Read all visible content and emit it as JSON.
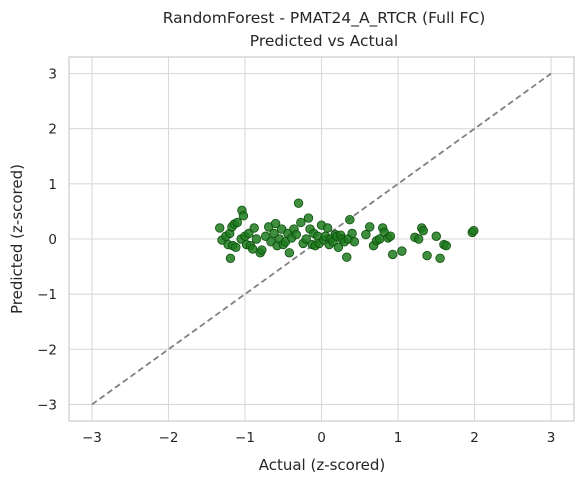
{
  "chart_data": {
    "type": "scatter",
    "title_line1": "RandomForest - PMAT24_A_RTCR (Full FC)",
    "title_line2": "Predicted vs Actual",
    "xlabel": "Actual (z-scored)",
    "ylabel": "Predicted (z-scored)",
    "xlim": [
      -3.3,
      3.3
    ],
    "ylim": [
      -3.3,
      3.3
    ],
    "xticks": [
      -3,
      -2,
      -1,
      0,
      1,
      2,
      3
    ],
    "yticks": [
      -3,
      -2,
      -1,
      0,
      1,
      2,
      3
    ],
    "xtick_labels": [
      "−3",
      "−2",
      "−1",
      "0",
      "1",
      "2",
      "3"
    ],
    "ytick_labels": [
      "−3",
      "−2",
      "−1",
      "0",
      "1",
      "2",
      "3"
    ],
    "grid": true,
    "reference_line": {
      "x": [
        -3,
        3
      ],
      "y": [
        -3,
        3
      ],
      "style": "dashed",
      "color": "#808080"
    },
    "point_color": "#1e7a1e",
    "point_edge_color": "#0b4f0b",
    "series": [
      {
        "x": [
          -1.33,
          -1.3,
          -1.25,
          -1.22,
          -1.2,
          -1.19,
          -1.17,
          -1.16,
          -1.14,
          -1.12,
          -1.1,
          -1.05,
          -1.04,
          -1.02,
          -1.0,
          -0.98,
          -0.95,
          -0.93,
          -0.9,
          -0.88,
          -0.85,
          -0.8,
          -0.78,
          -0.73,
          -0.69,
          -0.66,
          -0.62,
          -0.6,
          -0.58,
          -0.55,
          -0.52,
          -0.5,
          -0.47,
          -0.44,
          -0.42,
          -0.39,
          -0.36,
          -0.33,
          -0.3,
          -0.27,
          -0.24,
          -0.2,
          -0.17,
          -0.15,
          -0.12,
          -0.1,
          -0.08,
          -0.05,
          -0.03,
          0.0,
          0.03,
          0.05,
          0.08,
          0.1,
          0.12,
          0.15,
          0.18,
          0.2,
          0.22,
          0.25,
          0.27,
          0.3,
          0.33,
          0.35,
          0.37,
          0.4,
          0.43,
          0.58,
          0.63,
          0.68,
          0.72,
          0.76,
          0.8,
          0.82,
          0.87,
          0.9,
          0.93,
          1.05,
          1.22,
          1.27,
          1.31,
          1.33,
          1.38,
          1.5,
          1.55,
          1.6,
          1.63,
          1.97,
          1.99
        ],
        "y": [
          0.2,
          -0.02,
          0.05,
          -0.1,
          0.1,
          -0.35,
          0.22,
          -0.12,
          0.27,
          -0.15,
          0.3,
          0.0,
          0.52,
          0.42,
          0.05,
          -0.1,
          0.1,
          -0.12,
          -0.18,
          0.2,
          0.0,
          -0.25,
          -0.2,
          0.05,
          0.22,
          -0.05,
          0.1,
          0.28,
          -0.12,
          0.0,
          0.18,
          -0.1,
          -0.05,
          0.1,
          -0.25,
          0.02,
          0.18,
          0.08,
          0.65,
          0.3,
          -0.08,
          0.0,
          0.38,
          0.18,
          -0.1,
          0.1,
          -0.12,
          0.05,
          -0.08,
          0.25,
          -0.02,
          0.05,
          0.2,
          -0.1,
          0.0,
          -0.05,
          0.08,
          0.05,
          -0.15,
          0.07,
          0.0,
          -0.05,
          -0.33,
          0.0,
          0.35,
          0.1,
          -0.05,
          0.08,
          0.22,
          -0.12,
          -0.03,
          0.0,
          0.2,
          0.12,
          0.02,
          0.05,
          -0.28,
          -0.22,
          0.03,
          0.0,
          0.2,
          0.15,
          -0.3,
          0.05,
          -0.35,
          -0.1,
          -0.12,
          0.12,
          0.15
        ]
      }
    ]
  }
}
